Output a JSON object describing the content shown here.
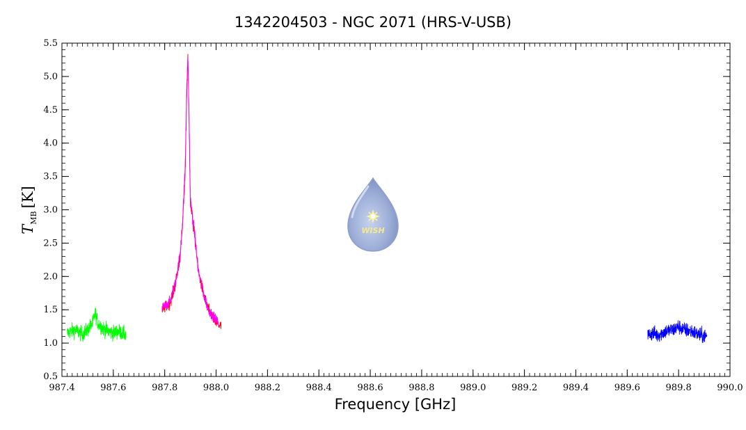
{
  "chart_data": {
    "type": "line",
    "title": "1342204503 - NGC 2071 (HRS-V-USB)",
    "xlabel": "Frequency [GHz]",
    "ylabel": {
      "symbol": "T",
      "subscript": "MB",
      "unit": "[K]"
    },
    "xlim": [
      987.4,
      990.0
    ],
    "ylim": [
      0.5,
      5.5
    ],
    "xticks": [
      "987.4",
      "987.6",
      "987.8",
      "988.0",
      "988.2",
      "988.4",
      "988.6",
      "988.8",
      "989.0",
      "989.2",
      "989.4",
      "989.6",
      "989.8",
      "990.0"
    ],
    "yticks": [
      "0.5",
      "1.0",
      "1.5",
      "2.0",
      "2.5",
      "3.0",
      "3.5",
      "4.0",
      "4.5",
      "5.0",
      "5.5"
    ],
    "grid": false,
    "series": [
      {
        "color": "#00ff00",
        "x": [
          987.42,
          987.45,
          987.48,
          987.5,
          987.52,
          987.53,
          987.54,
          987.56,
          987.58,
          987.6,
          987.62,
          987.65
        ],
        "y": [
          1.15,
          1.2,
          1.13,
          1.2,
          1.3,
          1.45,
          1.3,
          1.22,
          1.18,
          1.15,
          1.18,
          1.12
        ],
        "noise": 0.11
      },
      {
        "color": "#ff0000",
        "x": [
          987.79,
          987.82,
          987.84,
          987.86,
          987.87,
          987.88,
          987.885,
          987.89,
          987.895,
          987.9,
          987.91,
          987.92,
          987.93,
          987.95,
          987.97,
          988.0,
          988.02
        ],
        "y": [
          1.5,
          1.6,
          1.85,
          2.3,
          2.8,
          3.6,
          4.6,
          5.3,
          4.3,
          3.1,
          2.8,
          2.5,
          2.1,
          1.75,
          1.5,
          1.3,
          1.25
        ],
        "noise": 0.08
      },
      {
        "color": "#ff00ff",
        "x": [
          987.79,
          987.82,
          987.84,
          987.86,
          987.87,
          987.88,
          987.885,
          987.89,
          987.895,
          987.9,
          987.91,
          987.92,
          987.93,
          987.95,
          987.97,
          988.0,
          988.01
        ],
        "y": [
          1.52,
          1.62,
          1.88,
          2.32,
          2.85,
          3.7,
          4.7,
          5.35,
          4.4,
          3.15,
          2.85,
          2.5,
          2.1,
          1.75,
          1.5,
          1.35,
          1.3
        ],
        "noise": 0.07
      },
      {
        "color": "#0000ff",
        "x": [
          989.68,
          989.7,
          989.72,
          989.75,
          989.78,
          989.8,
          989.82,
          989.85,
          989.88,
          989.91
        ],
        "y": [
          1.12,
          1.15,
          1.12,
          1.18,
          1.2,
          1.25,
          1.2,
          1.18,
          1.12,
          1.1
        ],
        "noise": 0.11
      }
    ]
  },
  "logo": {
    "text": "WISH",
    "body_color": "#9fb0d8",
    "star_color": "#fff3a0",
    "text_color": "#f6e98a"
  }
}
